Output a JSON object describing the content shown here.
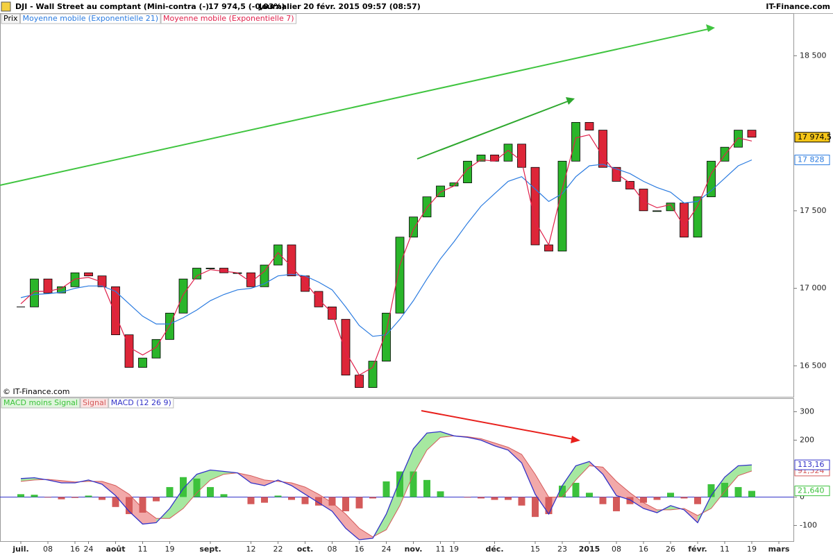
{
  "chart_data": [
    {
      "type": "candlestick",
      "title": "DJI - Wall Street au comptant (Mini-contra (-)",
      "quote": "17 974,5 (-0,03%)",
      "period": "Journalier",
      "datetime": "20 févr. 2015 09:57 (08:57)",
      "source": "IT-Finance.com",
      "copyright": "© IT-Finance.com",
      "up_color": "#2ab52a",
      "down_color": "#dd2638",
      "ylim": [
        16300,
        18770
      ],
      "yticks": [
        {
          "value": 18500,
          "label": "18 500"
        },
        {
          "value": 17500,
          "label": "17 500"
        },
        {
          "value": 17000,
          "label": "17 000"
        },
        {
          "value": 16500,
          "label": "16 500"
        }
      ],
      "series": [
        {
          "name": "Prix",
          "color": "#000000",
          "values": [
            16880,
            17060,
            16970,
            17010,
            17100,
            17080,
            17010,
            16700,
            16490,
            16550,
            16670,
            16840,
            17060,
            17130,
            17130,
            17100,
            17100,
            17010,
            17150,
            17280,
            17080,
            16980,
            16880,
            16800,
            16440,
            16360,
            16530,
            16840,
            17330,
            17460,
            17590,
            17660,
            17680,
            17820,
            17860,
            17820,
            17930,
            17780,
            17280,
            17240,
            17820,
            18070,
            18020,
            17780,
            17690,
            17640,
            17500,
            17500,
            17550,
            17330,
            17590,
            17820,
            17910,
            18020,
            17974.5,
            null,
            null
          ],
          "value_labels": [
            null,
            null,
            null,
            null,
            null,
            null,
            null,
            null,
            null,
            null,
            null,
            null,
            null,
            null,
            null,
            null,
            null,
            null,
            null,
            null,
            null,
            null,
            null,
            null,
            null,
            null,
            null,
            null,
            null,
            null,
            null,
            null,
            null,
            null,
            null,
            null,
            null,
            null,
            null,
            null,
            null,
            null,
            null,
            null,
            null,
            null,
            null,
            null,
            null,
            null,
            null,
            null,
            null,
            null,
            "17 974,5",
            null,
            null
          ]
        },
        {
          "name": "Moyenne mobile (Exponentielle 21)",
          "color": "#2a7be0",
          "values": [
            16940,
            16960,
            16965,
            16975,
            17000,
            17015,
            17015,
            16980,
            16900,
            16820,
            16770,
            16770,
            16810,
            16860,
            16920,
            16960,
            16990,
            17000,
            17030,
            17080,
            17090,
            17080,
            17040,
            16990,
            16880,
            16760,
            16690,
            16700,
            16800,
            16920,
            17060,
            17190,
            17300,
            17420,
            17530,
            17610,
            17690,
            17720,
            17640,
            17560,
            17610,
            17720,
            17790,
            17800,
            17770,
            17740,
            17690,
            17650,
            17620,
            17550,
            17560,
            17630,
            17710,
            17790,
            17828,
            null,
            null
          ],
          "value_labels": [
            null,
            null,
            null,
            null,
            null,
            null,
            null,
            null,
            null,
            null,
            null,
            null,
            null,
            null,
            null,
            null,
            null,
            null,
            null,
            null,
            null,
            null,
            null,
            null,
            null,
            null,
            null,
            null,
            null,
            null,
            null,
            null,
            null,
            null,
            null,
            null,
            null,
            null,
            null,
            null,
            null,
            null,
            null,
            null,
            null,
            null,
            null,
            null,
            null,
            null,
            null,
            null,
            null,
            null,
            "17 828",
            null,
            null
          ]
        },
        {
          "name": "Moyenne mobile (Exponentielle 7)",
          "color": "#e0204a",
          "values": [
            16900,
            16980,
            16980,
            17000,
            17060,
            17070,
            17040,
            16830,
            16620,
            16570,
            16620,
            16760,
            16960,
            17080,
            17120,
            17110,
            17100,
            17040,
            17110,
            17230,
            17140,
            17040,
            16930,
            16840,
            16590,
            16440,
            16490,
            16720,
            17150,
            17380,
            17520,
            17620,
            17660,
            17770,
            17830,
            17820,
            17890,
            17820,
            17430,
            17280,
            17640,
            17970,
            17990,
            17850,
            17740,
            17680,
            17560,
            17520,
            17540,
            17400,
            17530,
            17740,
            17860,
            17970,
            17950,
            null,
            null
          ]
        }
      ]
    },
    {
      "type": "macd",
      "categories": [
        "juil.",
        null,
        "08",
        null,
        "16",
        "24",
        null,
        "août",
        null,
        "11",
        null,
        "19",
        null,
        null,
        "sept.",
        null,
        null,
        "12",
        null,
        "22",
        null,
        "oct.",
        null,
        "08",
        null,
        "16",
        null,
        "24",
        null,
        "nov.",
        null,
        "11",
        "19",
        null,
        null,
        "déc.",
        null,
        null,
        "15",
        null,
        "23",
        null,
        "2015",
        null,
        "08",
        null,
        "16",
        null,
        "26",
        null,
        "févr.",
        null,
        "11",
        null,
        "19",
        null,
        "mars"
      ],
      "ylim": [
        -155,
        345
      ],
      "yticks": [
        300,
        200,
        0,
        -100
      ],
      "zero_line": true,
      "fill_up_color": "#a6e8a0",
      "fill_down_color": "#f2a9a9",
      "series": [
        {
          "name": "MACD moins Signal",
          "color": "#3cc23c",
          "values": [
            10,
            8,
            -2,
            -8,
            -3,
            5,
            -10,
            -35,
            -60,
            -55,
            -15,
            35,
            70,
            65,
            35,
            10,
            0,
            -25,
            -20,
            5,
            -10,
            -25,
            -30,
            -30,
            -50,
            -40,
            -5,
            55,
            90,
            90,
            60,
            20,
            0,
            -2,
            -5,
            -10,
            -10,
            -30,
            -70,
            -60,
            40,
            50,
            15,
            -25,
            -50,
            -25,
            -20,
            -10,
            15,
            -5,
            -25,
            45,
            50,
            35,
            21.64,
            null,
            null
          ],
          "value_labels": [
            null,
            null,
            null,
            null,
            null,
            null,
            null,
            null,
            null,
            null,
            null,
            null,
            null,
            null,
            null,
            null,
            null,
            null,
            null,
            null,
            null,
            null,
            null,
            null,
            null,
            null,
            null,
            null,
            null,
            null,
            null,
            null,
            null,
            null,
            null,
            null,
            null,
            null,
            null,
            null,
            null,
            null,
            null,
            null,
            null,
            null,
            null,
            null,
            null,
            null,
            null,
            null,
            null,
            null,
            "21,640",
            null,
            null
          ]
        },
        {
          "name": "Signal",
          "color": "#d45a5a",
          "values": [
            55,
            60,
            62,
            58,
            53,
            55,
            55,
            40,
            10,
            -40,
            -75,
            -75,
            -40,
            15,
            60,
            80,
            85,
            75,
            60,
            55,
            50,
            35,
            10,
            -20,
            -60,
            -110,
            -140,
            -115,
            -30,
            80,
            165,
            210,
            215,
            212,
            205,
            190,
            175,
            150,
            80,
            0,
            0,
            60,
            110,
            105,
            55,
            15,
            -20,
            -45,
            -45,
            -40,
            -65,
            -40,
            20,
            75,
            91.524,
            null,
            null
          ],
          "value_labels": [
            null,
            null,
            null,
            null,
            null,
            null,
            null,
            null,
            null,
            null,
            null,
            null,
            null,
            null,
            null,
            null,
            null,
            null,
            null,
            null,
            null,
            null,
            null,
            null,
            null,
            null,
            null,
            null,
            null,
            null,
            null,
            null,
            null,
            null,
            null,
            null,
            null,
            null,
            null,
            null,
            null,
            null,
            null,
            null,
            null,
            null,
            null,
            null,
            null,
            null,
            null,
            null,
            null,
            null,
            "91,524",
            null,
            null
          ]
        },
        {
          "name": "MACD (12 26 9)",
          "color": "#3232c8",
          "values": [
            65,
            68,
            60,
            50,
            50,
            60,
            45,
            5,
            -50,
            -95,
            -90,
            -40,
            30,
            80,
            95,
            90,
            85,
            50,
            40,
            60,
            40,
            10,
            -20,
            -50,
            -110,
            -150,
            -145,
            -60,
            60,
            170,
            225,
            230,
            215,
            210,
            200,
            180,
            165,
            120,
            10,
            -60,
            40,
            110,
            125,
            80,
            5,
            -10,
            -40,
            -55,
            -30,
            -45,
            -90,
            5,
            70,
            110,
            113.16,
            null,
            null
          ],
          "value_labels": [
            null,
            null,
            null,
            null,
            null,
            null,
            null,
            null,
            null,
            null,
            null,
            null,
            null,
            null,
            null,
            null,
            null,
            null,
            null,
            null,
            null,
            null,
            null,
            null,
            null,
            null,
            null,
            null,
            null,
            null,
            null,
            null,
            null,
            null,
            null,
            null,
            null,
            null,
            null,
            null,
            null,
            null,
            null,
            null,
            null,
            null,
            null,
            null,
            null,
            null,
            null,
            null,
            null,
            null,
            "113,16",
            null,
            null
          ]
        }
      ]
    }
  ]
}
